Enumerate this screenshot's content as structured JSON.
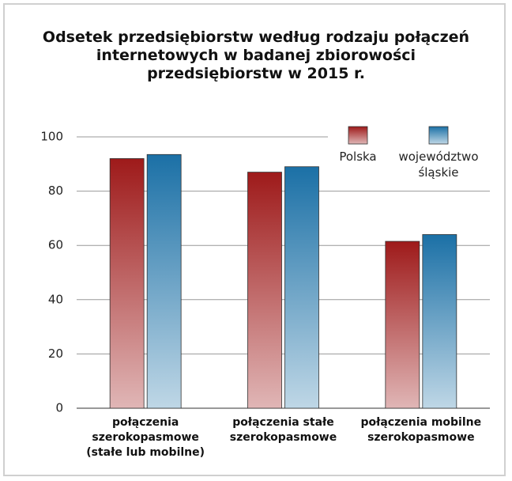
{
  "chart_data": {
    "type": "bar",
    "title": "Odsetek przedsiębiorstw według rodzaju połączeń internetowych w badanej zbiorowości przedsiębiorstw w 2015 r.",
    "categories": [
      "połączenia szerokopasmowe (stałe lub mobilne)",
      "połączenia stałe szerokopasmowe",
      "połączenia mobilne szerokopasmowe"
    ],
    "series": [
      {
        "name": "Polska",
        "color": "#9e1a1a",
        "values": [
          92,
          87,
          61.5
        ]
      },
      {
        "name": "województwo śląskie",
        "color": "#1b70a6",
        "values": [
          93.5,
          89,
          64
        ]
      }
    ],
    "ylim": [
      0,
      100
    ],
    "yticks": [
      0,
      20,
      40,
      60,
      80,
      100
    ],
    "grid": true,
    "legend": "top-right"
  }
}
